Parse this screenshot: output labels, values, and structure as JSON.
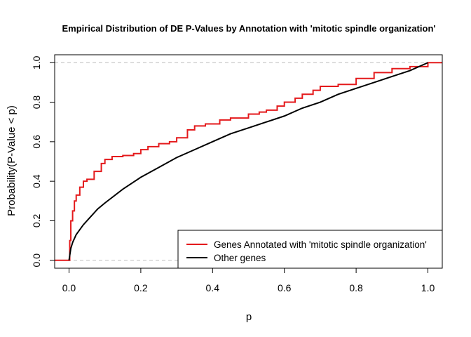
{
  "chart_data": {
    "type": "line",
    "title": "Empirical Distribution of DE P-Values by Annotation with 'mitotic spindle organization'",
    "xlabel": "p",
    "ylabel": "Probability(P-Value < p)",
    "xlim": [
      -0.04,
      1.04
    ],
    "ylim": [
      -0.04,
      1.04
    ],
    "x_ticks": [
      "0.0",
      "0.2",
      "0.4",
      "0.6",
      "0.8",
      "1.0"
    ],
    "y_ticks": [
      "0.0",
      "0.2",
      "0.4",
      "0.6",
      "0.8",
      "1.0"
    ],
    "reference_lines": [
      0,
      1
    ],
    "legend_position": "bottom-right",
    "series": [
      {
        "name": "Genes Annotated with 'mitotic spindle organization'",
        "color": "#e41a1c",
        "step": true,
        "x": [
          -0.04,
          0.0,
          0.002,
          0.005,
          0.01,
          0.015,
          0.02,
          0.03,
          0.04,
          0.05,
          0.07,
          0.09,
          0.1,
          0.12,
          0.15,
          0.18,
          0.2,
          0.22,
          0.25,
          0.28,
          0.3,
          0.33,
          0.35,
          0.38,
          0.4,
          0.42,
          0.45,
          0.5,
          0.53,
          0.55,
          0.58,
          0.6,
          0.63,
          0.65,
          0.68,
          0.7,
          0.75,
          0.8,
          0.85,
          0.9,
          0.95,
          1.0,
          1.04
        ],
        "values": [
          0.0,
          0.0,
          0.1,
          0.2,
          0.25,
          0.3,
          0.33,
          0.37,
          0.4,
          0.41,
          0.45,
          0.49,
          0.51,
          0.525,
          0.53,
          0.54,
          0.56,
          0.575,
          0.59,
          0.6,
          0.62,
          0.66,
          0.68,
          0.69,
          0.69,
          0.71,
          0.72,
          0.74,
          0.75,
          0.76,
          0.78,
          0.8,
          0.82,
          0.84,
          0.86,
          0.88,
          0.89,
          0.92,
          0.95,
          0.97,
          0.98,
          1.0,
          1.0
        ]
      },
      {
        "name": "Other genes",
        "color": "#000000",
        "step": false,
        "x": [
          0.0,
          0.005,
          0.01,
          0.02,
          0.04,
          0.06,
          0.08,
          0.1,
          0.15,
          0.2,
          0.25,
          0.3,
          0.35,
          0.4,
          0.45,
          0.5,
          0.55,
          0.6,
          0.65,
          0.7,
          0.75,
          0.8,
          0.85,
          0.9,
          0.95,
          1.0
        ],
        "values": [
          0.0,
          0.06,
          0.09,
          0.13,
          0.18,
          0.22,
          0.26,
          0.29,
          0.36,
          0.42,
          0.47,
          0.52,
          0.56,
          0.6,
          0.64,
          0.67,
          0.7,
          0.73,
          0.77,
          0.8,
          0.84,
          0.87,
          0.9,
          0.93,
          0.96,
          1.0
        ]
      }
    ]
  }
}
